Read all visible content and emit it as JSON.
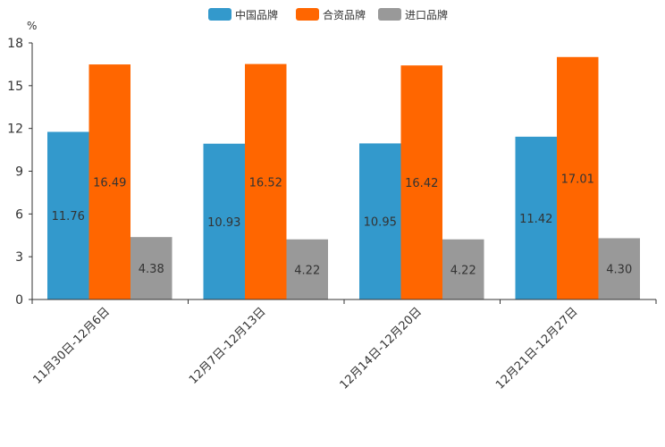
{
  "chart_data": {
    "type": "bar",
    "title": "",
    "xlabel": "",
    "ylabel": "",
    "y_unit_label": "%",
    "categories": [
      "11月30日-12月6日",
      "12月7日-12月13日",
      "12月14日-12月20日",
      "12月21日-12月27日"
    ],
    "series": [
      {
        "name": "中国品牌",
        "color": "#3399cc",
        "values": [
          11.76,
          10.93,
          10.95,
          11.42
        ],
        "labels": [
          "11.76",
          "10.93",
          "10.95",
          "11.42"
        ]
      },
      {
        "name": "合资品牌",
        "color": "#ff6600",
        "values": [
          16.49,
          16.52,
          16.42,
          17.01
        ],
        "labels": [
          "16.49",
          "16.52",
          "16.42",
          "17.01"
        ]
      },
      {
        "name": "进口品牌",
        "color": "#999999",
        "values": [
          4.38,
          4.22,
          4.22,
          4.3
        ],
        "labels": [
          "4.38",
          "4.22",
          "4.22",
          "4.30"
        ]
      }
    ],
    "ylim": [
      0,
      18
    ],
    "yticks": [
      "0",
      "3",
      "6",
      "9",
      "12",
      "15",
      "18"
    ],
    "grid": false,
    "legend_position": "top-center"
  }
}
